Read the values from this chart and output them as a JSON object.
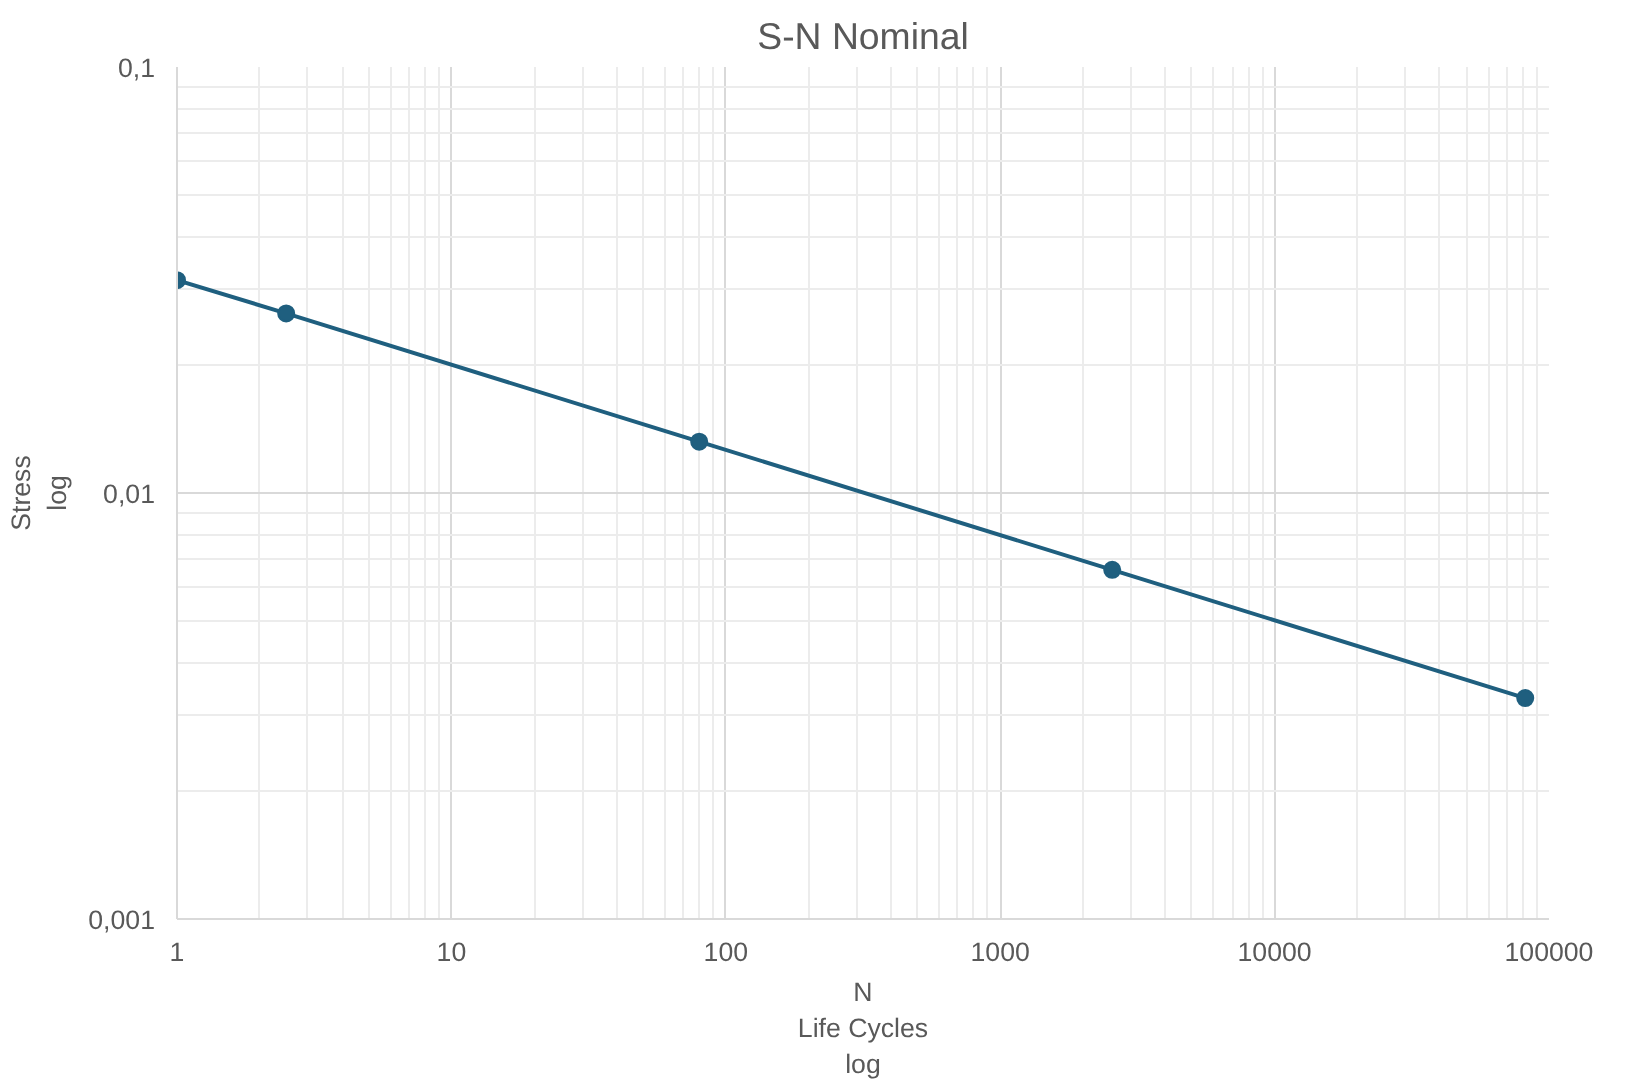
{
  "chart_data": {
    "type": "line",
    "title": "S-N Nominal",
    "xlabel": "N\nLife Cycles\nlog",
    "ylabel": "Stress\nlog",
    "log": "xy",
    "grid": true,
    "marker": "circle",
    "line_style": "solid",
    "x": [
      1,
      2.5,
      80,
      2560,
      81920
    ],
    "series": [
      {
        "color": "#1f5f7f",
        "values": [
          0.0316,
          0.0264,
          0.0132,
          0.0066,
          0.0033
        ]
      }
    ],
    "xlim": [
      1,
      100000
    ],
    "ylim": [
      0.001,
      0.1
    ],
    "xticks": [
      1,
      10,
      100,
      1000,
      10000,
      100000
    ],
    "yticks": [
      {
        "value": 0.001,
        "label": "0,001"
      },
      {
        "value": 0.01,
        "label": "0,01"
      },
      {
        "value": 0.1,
        "label": "0,1"
      }
    ]
  }
}
